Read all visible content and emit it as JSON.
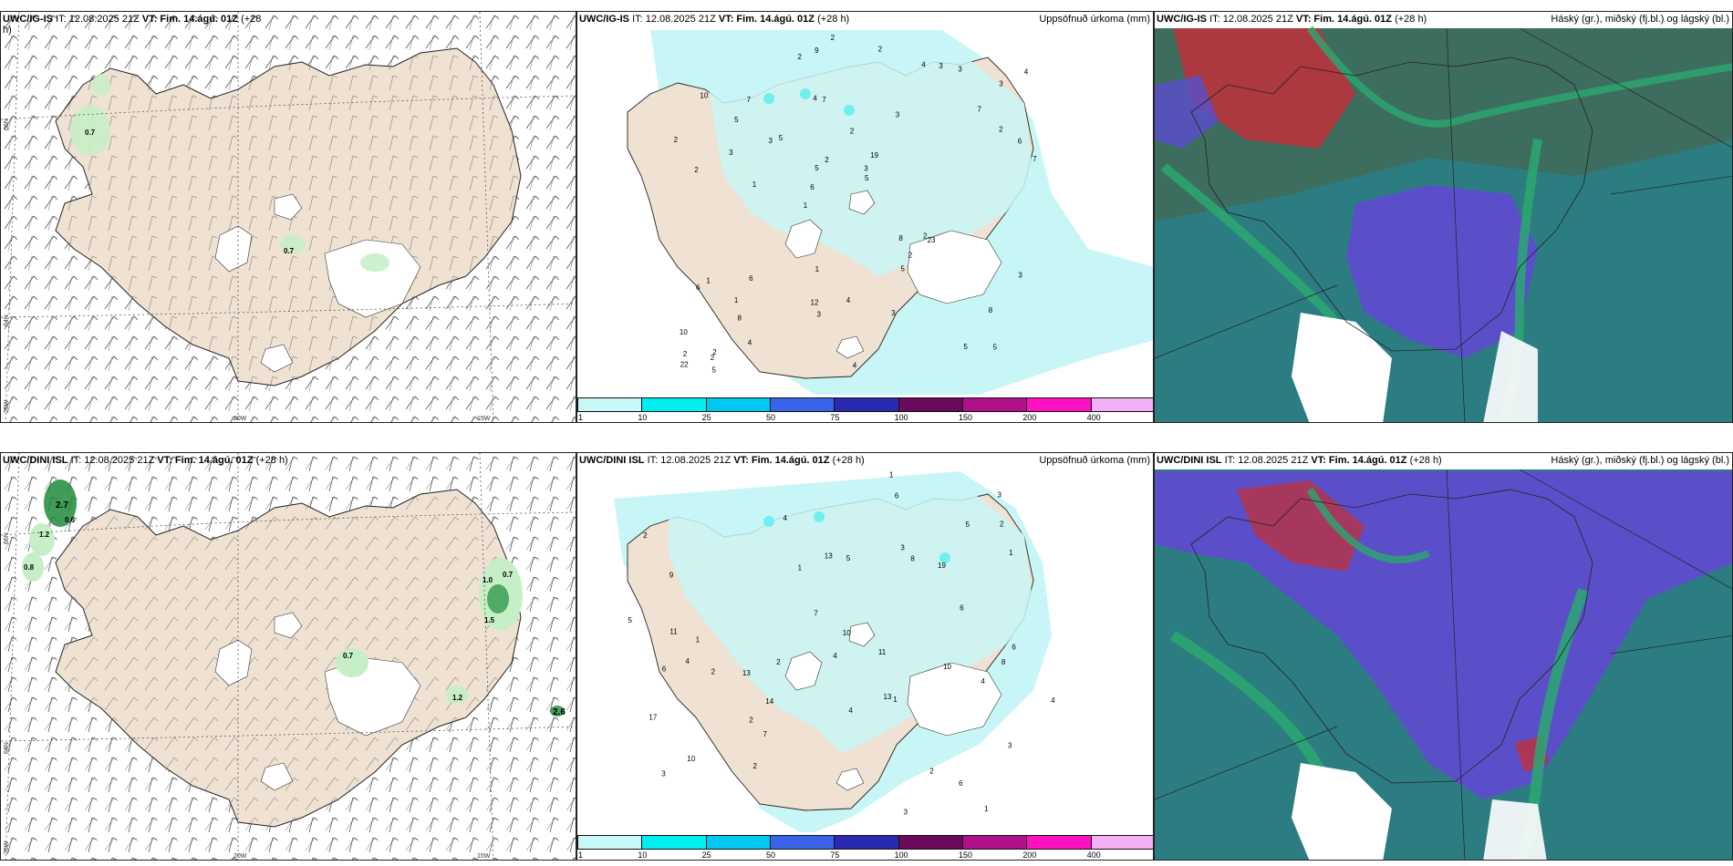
{
  "colors": {
    "land": "#efe2d2",
    "coast": "#222222",
    "precip_light": "#c8f6f6",
    "precip_mid": "#6ff0f0",
    "green_light": "#c7efc7",
    "green_dark": "#1e8b3a",
    "cloud_teal": "#2c7d82",
    "cloud_green": "#2aa870",
    "cloud_purple": "#5a4fc8",
    "cloud_red": "#c0303a"
  },
  "panels": {
    "r1c1": {
      "model": "UWC/IG-IS",
      "it": "IT: 12.08.2025 21Z",
      "vt": "VT: Fim. 14.ágú. 01Z",
      "lead": "(+28",
      "lead2": "h)",
      "numbers": [
        "0.7",
        "0.7"
      ]
    },
    "r1c2": {
      "model": "UWC/IG-IS",
      "it": "IT: 12.08.2025 21Z",
      "vt": "VT: Fim. 14.ágú. 01Z",
      "lead": "(+28 h)",
      "title": "Uppsöfnuð úrkoma (mm)"
    },
    "r1c3": {
      "model": "UWC/IG-IS",
      "it": "IT: 12.08.2025 21Z",
      "vt": "VT: Fim. 14.ágú. 01Z",
      "lead": "(+28 h)",
      "title": "Háský (gr.), miðský (fj.bl.) og lágský (bl.)"
    },
    "r2c1": {
      "model": "UWC/DINI ISL",
      "it": "IT: 12.08.2025 21Z",
      "vt": "VT: Fim. 14.ágú. 01Z",
      "lead": "(+28 h)",
      "numbers": [
        "2.7",
        "0.6",
        "1.2",
        "0.8",
        "1.0",
        "0.7",
        "1.5",
        "0.7",
        "1.2",
        "2.6"
      ]
    },
    "r2c2": {
      "model": "UWC/DINI ISL",
      "it": "IT: 12.08.2025 21Z",
      "vt": "VT: Fim. 14.ágú. 01Z",
      "lead": "(+28 h)",
      "title": "Uppsöfnuð úrkoma (mm)"
    },
    "r2c3": {
      "model": "UWC/DINI ISL",
      "it": "IT: 12.08.2025 21Z",
      "vt": "VT: Fim. 14.ágú. 01Z",
      "lead": "(+28 h)",
      "title": "Háský (gr.), miðský (fj.bl.) og lágský (bl.)"
    }
  },
  "grid_labels": {
    "lat66": "66N",
    "lat64": "64N",
    "lon20": "20W",
    "lon15": "15W",
    "lon25": "25W"
  },
  "colorbar": {
    "ticks": [
      "1",
      "10",
      "25",
      "50",
      "75",
      "100",
      "150",
      "200",
      "400"
    ],
    "colors": [
      "#c8f8f8",
      "#00f0f0",
      "#00c8f0",
      "#3a64e8",
      "#2a2ab0",
      "#6a0a5a",
      "#b0108a",
      "#ff10c0",
      "#f4b0f4"
    ]
  },
  "precip_numbers_top": [
    "5",
    "2",
    "3",
    "1",
    "3",
    "2",
    "4",
    "2",
    "1",
    "5",
    "10",
    "8",
    "7",
    "19",
    "23",
    "10",
    "9",
    "7",
    "8",
    "2",
    "6",
    "12",
    "5",
    "7",
    "4",
    "6",
    "5",
    "8",
    "2",
    "4",
    "3",
    "3",
    "5",
    "4",
    "6",
    "3",
    "2",
    "3",
    "5",
    "6",
    "7",
    "4",
    "2",
    "3",
    "1",
    "5",
    "22",
    "4",
    "3",
    "2",
    "1",
    "2",
    "5",
    "3",
    "2",
    "2",
    "2",
    "2",
    "3",
    "1"
  ],
  "precip_numbers_bottom": [
    "1",
    "4",
    "13",
    "2",
    "3",
    "9",
    "10",
    "13",
    "19",
    "13",
    "8",
    "6",
    "7",
    "4",
    "11",
    "17",
    "10",
    "10",
    "5",
    "3",
    "3",
    "5",
    "6",
    "4",
    "6",
    "11",
    "2",
    "4",
    "7",
    "2",
    "1",
    "6",
    "2",
    "3",
    "1",
    "4",
    "8",
    "2",
    "5",
    "3",
    "14",
    "4",
    "2",
    "1",
    "2",
    "1",
    "1",
    "6"
  ]
}
